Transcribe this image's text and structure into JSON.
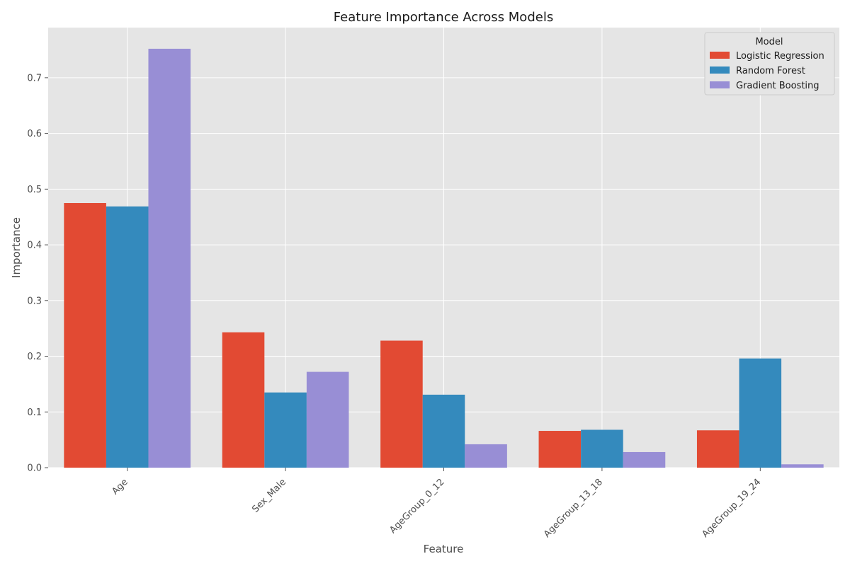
{
  "chart_data": {
    "type": "bar",
    "title": "Feature Importance Across Models",
    "xlabel": "Feature",
    "ylabel": "Importance",
    "categories": [
      "Age",
      "Sex_Male",
      "AgeGroup_0_12",
      "AgeGroup_13_18",
      "AgeGroup_19_24"
    ],
    "series": [
      {
        "name": "Logistic Regression",
        "color": "#E24A33",
        "values": [
          0.475,
          0.243,
          0.228,
          0.066,
          0.067
        ]
      },
      {
        "name": "Random Forest",
        "color": "#348ABD",
        "values": [
          0.469,
          0.135,
          0.131,
          0.068,
          0.196
        ]
      },
      {
        "name": "Gradient Boosting",
        "color": "#988ED5",
        "values": [
          0.752,
          0.172,
          0.042,
          0.028,
          0.006
        ]
      }
    ],
    "ylim": [
      0,
      0.79
    ],
    "yticks": [
      "0.0",
      "0.1",
      "0.2",
      "0.3",
      "0.4",
      "0.5",
      "0.6",
      "0.7"
    ],
    "grid": true,
    "legend": {
      "title": "Model",
      "position": "top-right"
    },
    "background_color": "#E5E5E5",
    "grid_color": "#FFFFFF"
  }
}
